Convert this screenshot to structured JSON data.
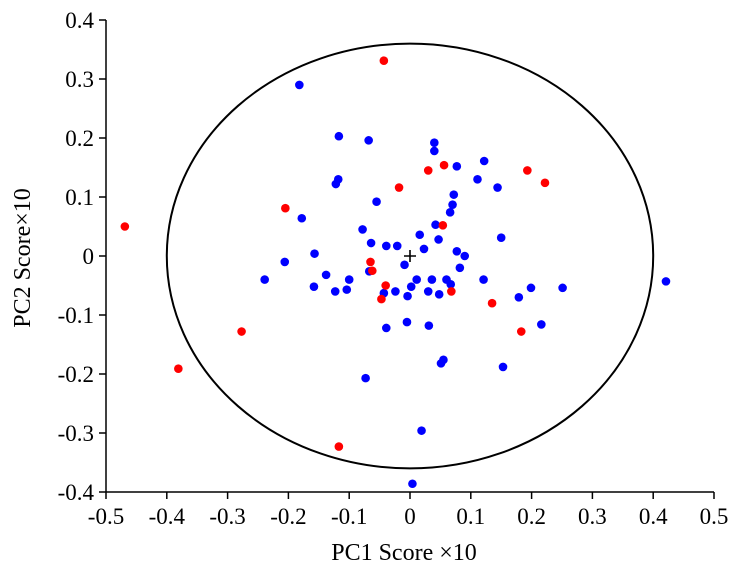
{
  "chart_data": {
    "type": "scatter",
    "xlabel": "PC1 Score ×10",
    "ylabel": "PC2 Score×10",
    "xlim": [
      -0.5,
      0.5
    ],
    "ylim": [
      -0.4,
      0.4
    ],
    "x_ticks": [
      "-0.5",
      "-0.4",
      "-0.3",
      "-0.2",
      "-0.1",
      "0",
      "0.1",
      "0.2",
      "0.3",
      "0.4",
      "0.5"
    ],
    "y_ticks": [
      "0.4",
      "0.3",
      "0.2",
      "0.1",
      "0",
      "-0.1",
      "-0.2",
      "-0.3",
      "-0.4"
    ],
    "grid": false,
    "legend": "none",
    "ellipse": {
      "center": [
        0,
        0
      ],
      "rx": 0.4,
      "ry": 0.36,
      "color": "#000000"
    },
    "center_marker": [
      0,
      0
    ],
    "series": [
      {
        "color": "#0000ff",
        "points": [
          [
            -0.182,
            0.29
          ],
          [
            0.421,
            -0.043
          ],
          [
            -0.117,
            0.203
          ],
          [
            -0.068,
            0.196
          ],
          [
            0.04,
            0.192
          ],
          [
            0.04,
            0.178
          ],
          [
            0.077,
            0.152
          ],
          [
            0.122,
            0.161
          ],
          [
            0.144,
            0.116
          ],
          [
            0.111,
            0.13
          ],
          [
            -0.122,
            0.122
          ],
          [
            -0.118,
            0.13
          ],
          [
            0.072,
            0.104
          ],
          [
            0.07,
            0.087
          ],
          [
            0.066,
            0.074
          ],
          [
            -0.055,
            0.092
          ],
          [
            -0.178,
            0.064
          ],
          [
            -0.078,
            0.045
          ],
          [
            0.042,
            0.053
          ],
          [
            -0.064,
            0.022
          ],
          [
            -0.039,
            0.017
          ],
          [
            -0.021,
            0.017
          ],
          [
            0.016,
            0.036
          ],
          [
            0.047,
            0.028
          ],
          [
            0.15,
            0.031
          ],
          [
            -0.157,
            0.004
          ],
          [
            0.023,
            0.012
          ],
          [
            0.077,
            0.008
          ],
          [
            0.09,
            0.0
          ],
          [
            -0.206,
            -0.01
          ],
          [
            -0.067,
            -0.026
          ],
          [
            -0.009,
            -0.015
          ],
          [
            0.082,
            -0.02
          ],
          [
            0.06,
            -0.04
          ],
          [
            -0.138,
            -0.032
          ],
          [
            -0.1,
            -0.04
          ],
          [
            0.011,
            -0.04
          ],
          [
            0.036,
            -0.04
          ],
          [
            0.121,
            -0.04
          ],
          [
            -0.239,
            -0.04
          ],
          [
            -0.158,
            -0.052
          ],
          [
            -0.104,
            -0.057
          ],
          [
            -0.123,
            -0.06
          ],
          [
            -0.024,
            -0.06
          ],
          [
            0.002,
            -0.052
          ],
          [
            0.03,
            -0.06
          ],
          [
            0.048,
            -0.065
          ],
          [
            0.067,
            -0.048
          ],
          [
            0.199,
            -0.054
          ],
          [
            0.251,
            -0.054
          ],
          [
            -0.043,
            -0.063
          ],
          [
            -0.004,
            -0.068
          ],
          [
            0.179,
            -0.07
          ],
          [
            -0.039,
            -0.122
          ],
          [
            -0.005,
            -0.112
          ],
          [
            0.031,
            -0.118
          ],
          [
            0.216,
            -0.116
          ],
          [
            0.055,
            -0.176
          ],
          [
            0.051,
            -0.182
          ],
          [
            0.153,
            -0.188
          ],
          [
            -0.073,
            -0.207
          ],
          [
            0.019,
            -0.296
          ],
          [
            0.004,
            -0.386
          ]
        ]
      },
      {
        "color": "#ff0000",
        "points": [
          [
            -0.043,
            0.331
          ],
          [
            0.056,
            0.154
          ],
          [
            0.03,
            0.145
          ],
          [
            0.193,
            0.145
          ],
          [
            0.222,
            0.124
          ],
          [
            -0.018,
            0.116
          ],
          [
            -0.205,
            0.081
          ],
          [
            -0.469,
            0.05
          ],
          [
            0.054,
            0.052
          ],
          [
            -0.065,
            -0.01
          ],
          [
            -0.062,
            -0.025
          ],
          [
            -0.04,
            -0.05
          ],
          [
            -0.047,
            -0.073
          ],
          [
            0.068,
            -0.06
          ],
          [
            0.135,
            -0.08
          ],
          [
            -0.277,
            -0.128
          ],
          [
            0.183,
            -0.128
          ],
          [
            -0.381,
            -0.191
          ],
          [
            -0.117,
            -0.323
          ]
        ]
      }
    ]
  }
}
